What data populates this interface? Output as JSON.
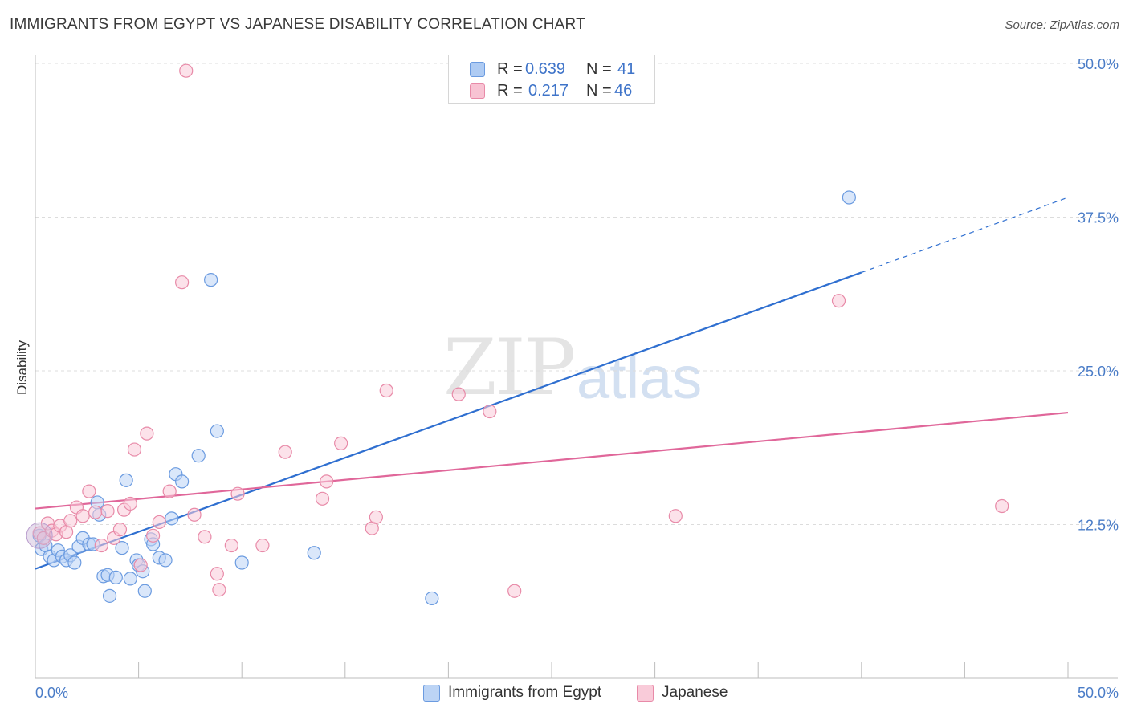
{
  "title": "IMMIGRANTS FROM EGYPT VS JAPANESE DISABILITY CORRELATION CHART",
  "source": "Source: ZipAtlas.com",
  "watermark": {
    "zip": "ZIP",
    "atlas": "atlas"
  },
  "legend": {
    "rows": [
      {
        "r_label": "R =",
        "r_value": "0.639",
        "n_label": "N =",
        "n_value": "41",
        "color": "#aecbf3",
        "border": "#6b9be0"
      },
      {
        "r_label": "R =",
        "r_value": "0.217",
        "n_label": "N =",
        "n_value": "46",
        "color": "#f8c3d3",
        "border": "#e88aa8"
      }
    ]
  },
  "bottom_legend": [
    {
      "label": "Immigrants from Egypt",
      "color": "#bcd4f5",
      "border": "#6b9be0"
    },
    {
      "label": "Japanese",
      "color": "#f9cbd9",
      "border": "#e88aa8"
    }
  ],
  "chart_data": {
    "type": "scatter",
    "title": "IMMIGRANTS FROM EGYPT VS JAPANESE DISABILITY CORRELATION CHART",
    "xlabel": "",
    "ylabel": "Disability",
    "xlim": [
      0,
      50
    ],
    "ylim": [
      0,
      50
    ],
    "x_tick_labels": [
      "0.0%",
      "50.0%"
    ],
    "y_ticks": [
      12.5,
      25.0,
      37.5,
      50.0
    ],
    "y_tick_labels": [
      "12.5%",
      "25.0%",
      "37.5%",
      "50.0%"
    ],
    "grid": true,
    "series": [
      {
        "name": "Immigrants from Egypt",
        "color": "#6b9be0",
        "fill": "#bcd4f5",
        "line_color": "#2f6fd0",
        "trend": {
          "x0": 0,
          "y0": 8.9,
          "x1": 40,
          "y1": 33.0,
          "dashed_to_x": 50,
          "dashed_to_y": 39.1
        },
        "points": [
          [
            0.2,
            11.6
          ],
          [
            0.3,
            10.5
          ],
          [
            0.5,
            10.8
          ],
          [
            0.7,
            9.9
          ],
          [
            0.9,
            9.6
          ],
          [
            1.1,
            10.4
          ],
          [
            1.3,
            9.9
          ],
          [
            1.5,
            9.6
          ],
          [
            1.7,
            10.0
          ],
          [
            1.9,
            9.4
          ],
          [
            2.1,
            10.7
          ],
          [
            2.3,
            11.4
          ],
          [
            2.6,
            10.9
          ],
          [
            2.8,
            10.9
          ],
          [
            3.0,
            14.3
          ],
          [
            3.1,
            13.3
          ],
          [
            3.3,
            8.3
          ],
          [
            3.5,
            8.4
          ],
          [
            3.6,
            6.7
          ],
          [
            3.9,
            8.2
          ],
          [
            4.2,
            10.6
          ],
          [
            4.4,
            16.1
          ],
          [
            4.6,
            8.1
          ],
          [
            4.9,
            9.6
          ],
          [
            5.0,
            9.2
          ],
          [
            5.2,
            8.7
          ],
          [
            5.3,
            7.1
          ],
          [
            5.6,
            11.3
          ],
          [
            5.7,
            10.9
          ],
          [
            6.0,
            9.8
          ],
          [
            6.3,
            9.6
          ],
          [
            6.6,
            13.0
          ],
          [
            6.8,
            16.6
          ],
          [
            7.1,
            16.0
          ],
          [
            7.9,
            18.1
          ],
          [
            8.5,
            32.4
          ],
          [
            8.8,
            20.1
          ],
          [
            10.0,
            9.4
          ],
          [
            13.5,
            10.2
          ],
          [
            19.2,
            6.5
          ],
          [
            39.4,
            39.1
          ]
        ]
      },
      {
        "name": "Japanese",
        "color": "#e88aa8",
        "fill": "#f9cbd9",
        "line_color": "#e0679a",
        "trend": {
          "x0": 0,
          "y0": 13.8,
          "x1": 50,
          "y1": 21.6
        },
        "points": [
          [
            0.2,
            11.8
          ],
          [
            0.4,
            11.4
          ],
          [
            0.6,
            12.6
          ],
          [
            0.8,
            12.0
          ],
          [
            1.0,
            11.7
          ],
          [
            1.2,
            12.4
          ],
          [
            1.5,
            11.9
          ],
          [
            1.7,
            12.8
          ],
          [
            2.0,
            13.9
          ],
          [
            2.3,
            13.2
          ],
          [
            2.6,
            15.2
          ],
          [
            2.9,
            13.5
          ],
          [
            3.2,
            10.8
          ],
          [
            3.5,
            13.6
          ],
          [
            3.8,
            11.4
          ],
          [
            4.1,
            12.1
          ],
          [
            4.3,
            13.7
          ],
          [
            4.6,
            14.2
          ],
          [
            4.8,
            18.6
          ],
          [
            5.1,
            9.2
          ],
          [
            5.4,
            19.9
          ],
          [
            5.7,
            11.6
          ],
          [
            6.0,
            12.7
          ],
          [
            6.5,
            15.2
          ],
          [
            7.1,
            32.2
          ],
          [
            7.3,
            49.4
          ],
          [
            7.7,
            13.3
          ],
          [
            8.2,
            11.5
          ],
          [
            8.8,
            8.5
          ],
          [
            8.9,
            7.2
          ],
          [
            9.5,
            10.8
          ],
          [
            9.8,
            15.0
          ],
          [
            11.0,
            10.8
          ],
          [
            12.1,
            18.4
          ],
          [
            13.9,
            14.6
          ],
          [
            14.1,
            16.0
          ],
          [
            14.8,
            19.1
          ],
          [
            16.3,
            12.2
          ],
          [
            16.5,
            13.1
          ],
          [
            17.0,
            23.4
          ],
          [
            20.5,
            23.1
          ],
          [
            22.0,
            21.7
          ],
          [
            23.2,
            7.1
          ],
          [
            31.0,
            13.2
          ],
          [
            38.9,
            30.7
          ],
          [
            46.8,
            14.0
          ]
        ]
      }
    ]
  }
}
